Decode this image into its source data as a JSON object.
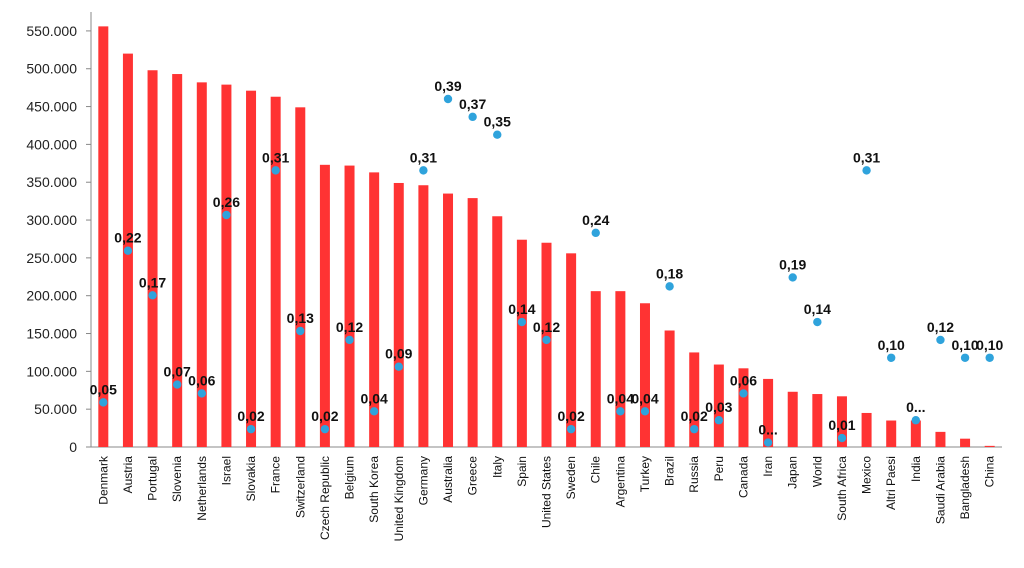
{
  "chart_data": {
    "type": "bar",
    "categories": [
      "Denmark",
      "Austria",
      "Portugal",
      "Slovenia",
      "Netherlands",
      "Israel",
      "Slovakia",
      "France",
      "Switzerland",
      "Czech Republic",
      "Belgium",
      "South Korea",
      "United Kingdom",
      "Germany",
      "Australia",
      "Greece",
      "Italy",
      "Spain",
      "United States",
      "Sweden",
      "Chile",
      "Argentina",
      "Turkey",
      "Brazil",
      "Russia",
      "Peru",
      "Canada",
      "Iran",
      "Japan",
      "World",
      "South Africa",
      "Mexico",
      "Altri Paesi",
      "India",
      "Saudi Arabia",
      "Bangladesh",
      "China"
    ],
    "series": [
      {
        "kind": "bar",
        "color": "#ff3333",
        "values": [
          556000,
          520000,
          498000,
          493000,
          482000,
          479000,
          471000,
          463000,
          449000,
          373000,
          372000,
          363000,
          349000,
          346000,
          335000,
          329000,
          305000,
          274000,
          270000,
          256000,
          206000,
          206000,
          190000,
          154000,
          125000,
          109000,
          104000,
          90000,
          73000,
          70000,
          67000,
          45000,
          35000,
          35000,
          20000,
          11000,
          1500
        ]
      },
      {
        "kind": "point",
        "color": "#2fa3dc",
        "values": [
          0.05,
          0.22,
          0.17,
          0.07,
          0.06,
          0.26,
          0.02,
          0.31,
          0.13,
          0.02,
          0.12,
          0.04,
          0.09,
          0.31,
          0.39,
          0.37,
          0.35,
          0.14,
          0.12,
          0.02,
          0.24,
          0.04,
          0.04,
          0.18,
          0.02,
          0.03,
          0.06,
          0.005,
          0.19,
          0.14,
          0.01,
          0.31,
          0.1,
          0.03,
          0.12,
          0.1,
          0.1
        ],
        "labels": [
          "0,05",
          "0,22",
          "0,17",
          "0,07",
          "0,06",
          "0,26",
          "0,02",
          "0,31",
          "0,13",
          "0,02",
          "0,12",
          "0,04",
          "0,09",
          "0,31",
          "0,39",
          "0,37",
          "0,35",
          "0,14",
          "0,12",
          "0,02",
          "0,24",
          "0,04",
          "0,04",
          "0,18",
          "0,02",
          "0,03",
          "0,06",
          "0...",
          "0,19",
          "0,14",
          "0,01",
          "0,31",
          "0,10",
          "0...",
          "0,12",
          "0,10",
          "0,10"
        ]
      }
    ],
    "y_ticks": [
      "0",
      "50.000",
      "100.000",
      "150.000",
      "200.000",
      "250.000",
      "300.000",
      "350.000",
      "400.000",
      "450.000",
      "500.000",
      "550.000"
    ],
    "ylim": [
      0,
      575000
    ],
    "y2lim": [
      0,
      0.4875
    ],
    "grid": false,
    "legend": "none"
  }
}
